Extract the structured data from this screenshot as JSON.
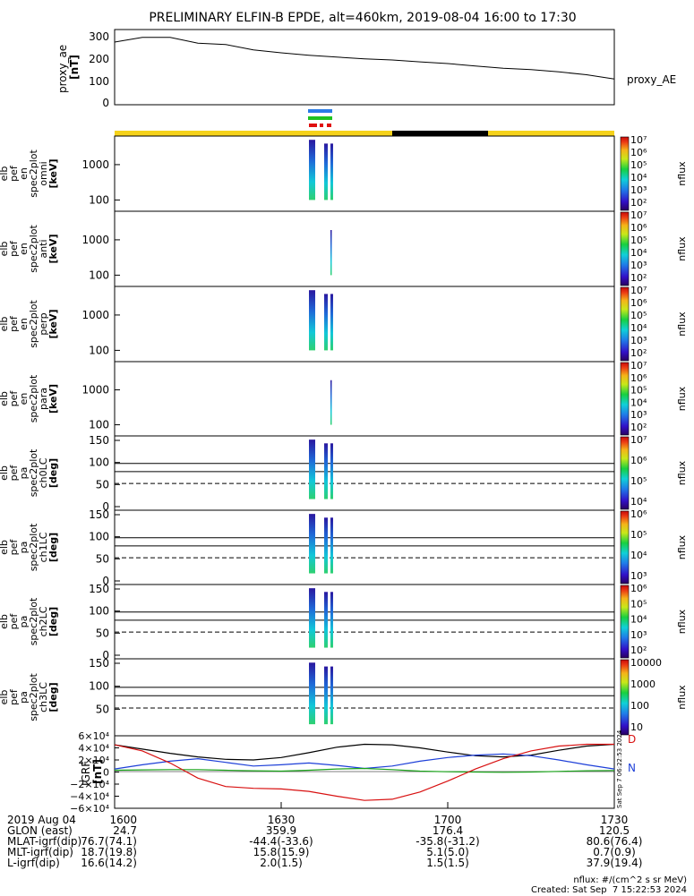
{
  "title": "PRELIMINARY ELFIN-B EPDE, alt=460km, 2019-08-04 16:00 to 17:30",
  "colors": {
    "day_bar": "#f5d21a",
    "night_bar": "#000000",
    "sci_bar_blue": "#2a7be6",
    "sci_bar_green": "#1ec21e",
    "sci_bar_red": "#e01010",
    "igrf_black": "#000000",
    "igrf_blue": "#1d3fd8",
    "igrf_green": "#1aa31a",
    "igrf_red": "#d81010"
  },
  "panels": [
    {
      "id": "proxy-ae",
      "ylabel": [
        "proxy_ae",
        "[nT]"
      ],
      "right_label": "proxy_AE",
      "yticks": [
        "300",
        "200",
        "100",
        "0"
      ],
      "ylim": [
        0,
        300
      ]
    },
    {
      "id": "pef-en-spec-omni",
      "ylabel": [
        "elb",
        "pef",
        "en",
        "spec2plot",
        "omni",
        "[keV]"
      ],
      "yticks": [
        "1000",
        "100"
      ],
      "cbar_label": "nflux",
      "cbar_ticks": [
        "10⁷",
        "10⁶",
        "10⁵",
        "10⁴",
        "10³",
        "10²"
      ]
    },
    {
      "id": "pef-en-spec-anti",
      "ylabel": [
        "elb",
        "pef",
        "en",
        "spec2plot",
        "anti",
        "[keV]"
      ],
      "yticks": [
        "1000",
        "100"
      ],
      "cbar_label": "nflux",
      "cbar_ticks": [
        "10⁷",
        "10⁶",
        "10⁵",
        "10⁴",
        "10³",
        "10²"
      ]
    },
    {
      "id": "pef-en-spec-perp",
      "ylabel": [
        "elb",
        "pef",
        "en",
        "spec2plot",
        "perp",
        "[keV]"
      ],
      "yticks": [
        "1000",
        "100"
      ],
      "cbar_label": "nflux",
      "cbar_ticks": [
        "10⁷",
        "10⁶",
        "10⁵",
        "10⁴",
        "10³",
        "10²"
      ]
    },
    {
      "id": "pef-en-spec-para",
      "ylabel": [
        "elb",
        "pef",
        "en",
        "spec2plot",
        "para",
        "[keV]"
      ],
      "yticks": [
        "1000",
        "100"
      ],
      "cbar_label": "nflux",
      "cbar_ticks": [
        "10⁷",
        "10⁶",
        "10⁵",
        "10⁴",
        "10³",
        "10²"
      ]
    },
    {
      "id": "pef-pa-ch0lc",
      "ylabel": [
        "elb",
        "pef",
        "pa",
        "spec2plot",
        "ch0LC",
        "[deg]"
      ],
      "yticks": [
        "150",
        "100",
        "50",
        "0"
      ],
      "cbar_label": "nflux",
      "cbar_ticks": [
        "10⁷",
        "10⁶",
        "10⁵",
        "10⁴"
      ]
    },
    {
      "id": "pef-pa-ch1lc",
      "ylabel": [
        "elb",
        "pef",
        "pa",
        "spec2plot",
        "ch1LC",
        "[deg]"
      ],
      "yticks": [
        "150",
        "100",
        "50",
        "0"
      ],
      "cbar_label": "nflux",
      "cbar_ticks": [
        "10⁶",
        "10⁵",
        "10⁴",
        "10³"
      ]
    },
    {
      "id": "pef-pa-ch2lc",
      "ylabel": [
        "elb",
        "pef",
        "pa",
        "spec2plot",
        "ch2LC",
        "[deg]"
      ],
      "yticks": [
        "150",
        "100",
        "50",
        "0"
      ],
      "cbar_label": "nflux",
      "cbar_ticks": [
        "10⁶",
        "10⁵",
        "10⁴",
        "10³",
        "10²"
      ]
    },
    {
      "id": "pef-pa-ch3lc",
      "ylabel": [
        "elb",
        "pef",
        "pa",
        "spec2plot",
        "ch3LC",
        "[deg]"
      ],
      "yticks": [
        "150",
        "100",
        "50"
      ],
      "cbar_label": "nflux",
      "cbar_ticks": [
        "10000",
        "1000",
        "100",
        "10"
      ]
    },
    {
      "id": "igrf",
      "ylabel": [
        "IGRF",
        "[nT]"
      ],
      "yticks": [
        "6×10⁴",
        "4×10⁴",
        "2×10⁴",
        "0",
        "−2×10⁴",
        "−4×10⁴",
        "−6×10⁴"
      ],
      "ylim": [
        -60000,
        60000
      ],
      "right_labels": [
        "D",
        "N"
      ],
      "vertical_note": "Sat Sep  7 06:22:53 2024"
    }
  ],
  "chart_data": {
    "type": "line",
    "x_ticks": [
      "1600",
      "1630",
      "1700",
      "1730"
    ],
    "x_range_minutes": [
      0,
      90
    ],
    "proxy_ae": {
      "x": [
        0,
        5,
        10,
        15,
        20,
        25,
        30,
        35,
        40,
        45,
        50,
        55,
        60,
        65,
        70,
        75,
        80,
        85,
        90
      ],
      "y": [
        255,
        275,
        275,
        250,
        245,
        222,
        210,
        200,
        192,
        185,
        180,
        172,
        165,
        155,
        145,
        140,
        130,
        118,
        100
      ]
    },
    "igrf": {
      "x": [
        0,
        5,
        10,
        15,
        20,
        25,
        30,
        35,
        40,
        45,
        50,
        55,
        60,
        65,
        70,
        75,
        80,
        85,
        90
      ],
      "series": [
        {
          "color": "igrf_black",
          "values": [
            45000,
            38000,
            31000,
            25000,
            21000,
            20000,
            24000,
            32000,
            41000,
            46000,
            45000,
            40000,
            33000,
            27000,
            25000,
            28000,
            36000,
            43000,
            46000
          ]
        },
        {
          "color": "igrf_blue",
          "values": [
            5000,
            12000,
            18000,
            22000,
            16000,
            10000,
            12000,
            15000,
            11000,
            6000,
            10000,
            18000,
            24000,
            28000,
            30000,
            27000,
            20000,
            12000,
            5000
          ]
        },
        {
          "color": "igrf_green",
          "values": [
            3000,
            3500,
            4000,
            4000,
            3000,
            2000,
            1500,
            3000,
            5000,
            6000,
            4000,
            1500,
            500,
            0,
            -500,
            0,
            1000,
            2000,
            2500
          ]
        },
        {
          "color": "igrf_red",
          "values": [
            45000,
            35000,
            15000,
            -10000,
            -24000,
            -27000,
            -28000,
            -32000,
            -40000,
            -47000,
            -45000,
            -33000,
            -15000,
            5000,
            22000,
            35000,
            43000,
            46000,
            46000
          ]
        }
      ]
    }
  },
  "footer": {
    "rows": [
      {
        "label": "2019 Aug 04",
        "values": [
          "1600",
          "1630",
          "1700",
          "1730"
        ]
      },
      {
        "label": "GLON (east)",
        "values": [
          "24.7",
          "359.9",
          "176.4",
          "120.5"
        ]
      },
      {
        "label": "MLAT-igrf(dip)",
        "values": [
          "76.7(74.1)",
          "-44.4(-33.6)",
          "-35.8(-31.2)",
          "80.6(76.4)"
        ]
      },
      {
        "label": "MLT-igrf(dip)",
        "values": [
          "18.7(19.8)",
          "15.8(15.9)",
          "5.1(5.0)",
          "0.7(0.9)"
        ]
      },
      {
        "label": "L-igrf(dip)",
        "values": [
          "16.6(14.2)",
          "2.0(1.5)",
          "1.5(1.5)",
          "37.9(19.4)"
        ]
      }
    ],
    "units_note": "nflux: #/(cm^2 s sr MeV)",
    "created": "Created: Sat Sep  7 15:22:53 2024"
  }
}
